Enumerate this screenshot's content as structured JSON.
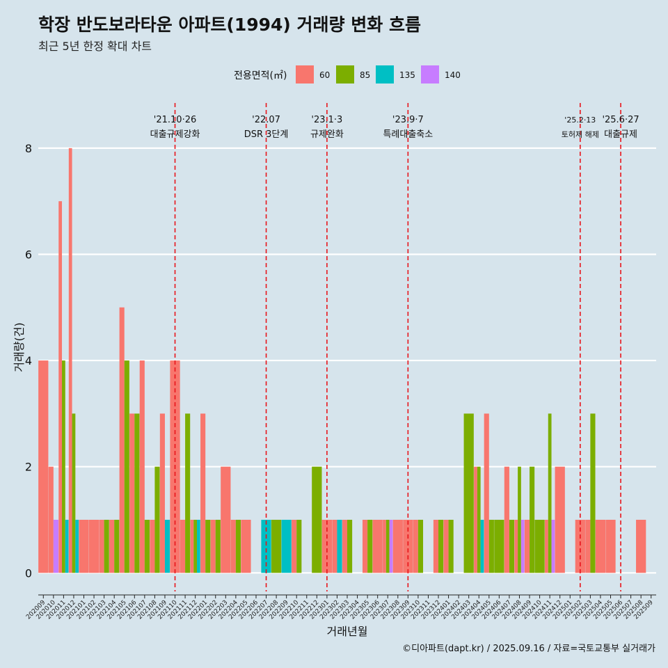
{
  "title": "학장 반도보라타운 아파트(1994) 거래량 변화 흐름",
  "subtitle": "최근 5년 한정 확대 차트",
  "caption": "©디아파트(dapt.kr) / 2025.09.16 / 자료=국토교통부 실거래가",
  "chart_data": {
    "type": "bar",
    "xlabel": "거래년월",
    "ylabel": "거래량(건)",
    "ylim": [
      -0.35,
      8.85
    ],
    "yticks": [
      0,
      2,
      4,
      6,
      8
    ],
    "grid": true,
    "legend": {
      "title": "전용면적(㎡)",
      "position": "top",
      "entries": [
        {
          "name": "60",
          "color": "#f8766d"
        },
        {
          "name": "85",
          "color": "#7cae00"
        },
        {
          "name": "135",
          "color": "#00bfc4"
        },
        {
          "name": "140",
          "color": "#c77cff"
        }
      ]
    },
    "months": [
      "202009",
      "202010",
      "202011",
      "202012",
      "202101",
      "202102",
      "202103",
      "202104",
      "202105",
      "202106",
      "202107",
      "202108",
      "202109",
      "202110",
      "202111",
      "202112",
      "202201",
      "202202",
      "202203",
      "202204",
      "202205",
      "202206",
      "202207",
      "202208",
      "202209",
      "202210",
      "202211",
      "202212",
      "202301",
      "202302",
      "202303",
      "202304",
      "202305",
      "202306",
      "202307",
      "202308",
      "202309",
      "202310",
      "202311",
      "202312",
      "202401",
      "202402",
      "202403",
      "202404",
      "202405",
      "202406",
      "202407",
      "202408",
      "202409",
      "202410",
      "202411",
      "202412",
      "202501",
      "202502",
      "202503",
      "202504",
      "202505",
      "202506",
      "202507",
      "202508",
      "202509"
    ],
    "series": [
      {
        "name": "60",
        "values": [
          4,
          2,
          7,
          8,
          1,
          1,
          1,
          1,
          5,
          3,
          4,
          1,
          3,
          4,
          1,
          1,
          3,
          1,
          2,
          1,
          1,
          0,
          0,
          0,
          0,
          1,
          0,
          0,
          1,
          1,
          1,
          0,
          1,
          1,
          1,
          1,
          1,
          1,
          0,
          1,
          1,
          0,
          0,
          2,
          3,
          0,
          2,
          1,
          1,
          0,
          1,
          2,
          0,
          1,
          1,
          1,
          1,
          0,
          0,
          1,
          0
        ]
      },
      {
        "name": "85",
        "values": [
          0,
          0,
          4,
          3,
          0,
          0,
          1,
          1,
          4,
          3,
          1,
          2,
          0,
          0,
          3,
          1,
          1,
          1,
          0,
          1,
          0,
          0,
          0,
          1,
          0,
          1,
          0,
          2,
          0,
          0,
          1,
          0,
          1,
          0,
          1,
          0,
          0,
          1,
          0,
          1,
          1,
          0,
          3,
          2,
          1,
          1,
          1,
          2,
          2,
          1,
          3,
          0,
          0,
          0,
          3,
          0,
          0,
          0,
          0,
          0,
          0
        ]
      },
      {
        "name": "135",
        "values": [
          0,
          0,
          1,
          1,
          0,
          0,
          0,
          0,
          0,
          0,
          0,
          0,
          1,
          0,
          0,
          1,
          0,
          0,
          0,
          0,
          0,
          0,
          1,
          0,
          1,
          0,
          0,
          0,
          0,
          1,
          0,
          0,
          0,
          0,
          0,
          0,
          0,
          0,
          0,
          0,
          0,
          0,
          0,
          1,
          0,
          0,
          0,
          0,
          0,
          0,
          0,
          0,
          0,
          0,
          0,
          0,
          0,
          0,
          0,
          0,
          0
        ]
      },
      {
        "name": "140",
        "values": [
          0,
          1,
          0,
          0,
          0,
          0,
          0,
          0,
          0,
          0,
          0,
          0,
          0,
          0,
          0,
          0,
          0,
          0,
          0,
          0,
          0,
          0,
          0,
          0,
          0,
          0,
          0,
          0,
          0,
          0,
          0,
          0,
          0,
          0,
          1,
          0,
          0,
          0,
          0,
          0,
          0,
          0,
          0,
          0,
          0,
          0,
          0,
          1,
          0,
          0,
          1,
          0,
          0,
          0,
          0,
          0,
          0,
          0,
          0,
          0,
          0
        ]
      }
    ],
    "annotations": [
      {
        "month": "202110",
        "date": "'21.10·26",
        "label": "대출규제강화"
      },
      {
        "month": "202207",
        "date": "'22.07",
        "label": "DSR 3단계"
      },
      {
        "month": "202301",
        "date": "'23.1·3",
        "label": "규제완화"
      },
      {
        "month": "202309",
        "date": "'23.9·7",
        "label": "특례대출축소"
      },
      {
        "month": "202502",
        "date": "'25.2·13",
        "label": "토허제 해제"
      },
      {
        "month": "202506",
        "date": "'25.6·27",
        "label": "대출규제"
      }
    ]
  }
}
